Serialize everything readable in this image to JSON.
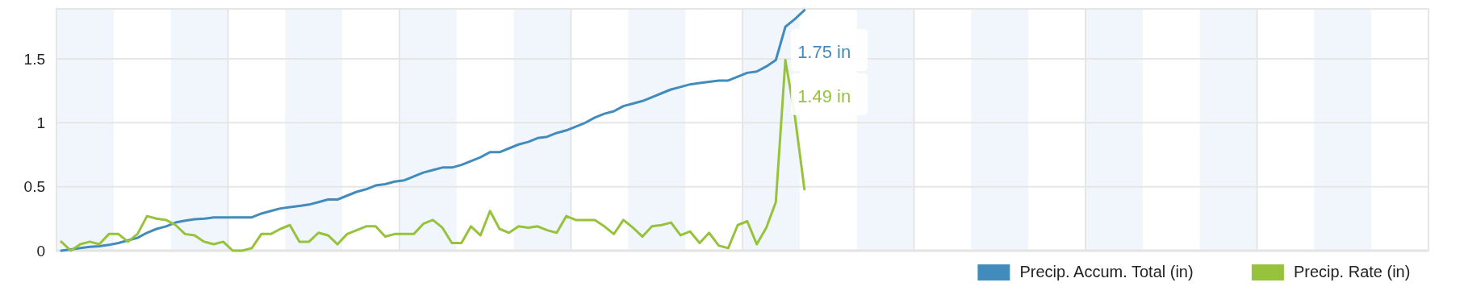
{
  "chart_data": {
    "type": "line",
    "categories": [
      null,
      null,
      null,
      null,
      null,
      null,
      null,
      null,
      null,
      null,
      null,
      null,
      null,
      null,
      null,
      null,
      null,
      null,
      null,
      null,
      null,
      null,
      null,
      null,
      null,
      null,
      null,
      null,
      null,
      null,
      null,
      null,
      null,
      null,
      null,
      null,
      null,
      null,
      null,
      null,
      null,
      null,
      null,
      null,
      null,
      null,
      null,
      null,
      null,
      null,
      null,
      null,
      null,
      null,
      null,
      null,
      null,
      null,
      null,
      null,
      null,
      null,
      null,
      null,
      null,
      null,
      null,
      null,
      null,
      null,
      null,
      null,
      null,
      null,
      null,
      null,
      null,
      null,
      null,
      null,
      null,
      null,
      null,
      null,
      null,
      null,
      null,
      null,
      null,
      null,
      null,
      null,
      null,
      null,
      null,
      null,
      null,
      null,
      null,
      null,
      null,
      null,
      null,
      null,
      null,
      null,
      null,
      null,
      null,
      null,
      null,
      null,
      null,
      null,
      null,
      null,
      null,
      null,
      null,
      null,
      null,
      null,
      null,
      null,
      null,
      null,
      null,
      null,
      null,
      null,
      null,
      null,
      null,
      null,
      null,
      null,
      null,
      null,
      null,
      null,
      null,
      null,
      null,
      null
    ],
    "ylim": [
      0,
      1.89
    ],
    "yticks": [
      0,
      0.5,
      1,
      1.5
    ],
    "tick_labels": "y",
    "grid": "y",
    "legend": "bottom right",
    "line_style": "solid",
    "annotations": [
      "1.75 in",
      "1.49 in"
    ],
    "series": [
      {
        "name": "Precip. Accum. Total (in)",
        "color": "#428bbd",
        "values": [
          0,
          0.01,
          0.02,
          0.03,
          0.035,
          0.045,
          0.06,
          0.08,
          0.1,
          0.14,
          0.17,
          0.19,
          0.22,
          0.235,
          0.245,
          0.25,
          0.26,
          0.26,
          0.26,
          0.26,
          0.26,
          0.29,
          0.31,
          0.33,
          0.34,
          0.35,
          0.36,
          0.38,
          0.4,
          0.4,
          0.43,
          0.46,
          0.48,
          0.51,
          0.52,
          0.54,
          0.55,
          0.58,
          0.61,
          0.63,
          0.65,
          0.65,
          0.67,
          0.7,
          0.73,
          0.77,
          0.77,
          0.8,
          0.83,
          0.85,
          0.88,
          0.89,
          0.92,
          0.94,
          0.97,
          1.0,
          1.04,
          1.07,
          1.09,
          1.13,
          1.15,
          1.17,
          1.2,
          1.23,
          1.26,
          1.28,
          1.3,
          1.31,
          1.32,
          1.33,
          1.33,
          1.36,
          1.39,
          1.4,
          1.44,
          1.49,
          1.75,
          1.81,
          1.88,
          null,
          null,
          null,
          null,
          null,
          null,
          null,
          null,
          null,
          null,
          null,
          null,
          null,
          null,
          null,
          null,
          null,
          null,
          null,
          null,
          null,
          null,
          null,
          null,
          null,
          null,
          null,
          null,
          null,
          null,
          null,
          null,
          null,
          null,
          null,
          null,
          null,
          null,
          null,
          null,
          null,
          null,
          null,
          null,
          null,
          null,
          null,
          null,
          null,
          null,
          null,
          null,
          null,
          null,
          null,
          null,
          null,
          null,
          null,
          null,
          null,
          null,
          null,
          null,
          null
        ]
      },
      {
        "name": "Precip. Rate (in)",
        "color": "#97c23c",
        "values": [
          0.07,
          0,
          0.05,
          0.07,
          0.05,
          0.13,
          0.13,
          0.07,
          0.13,
          0.27,
          0.25,
          0.24,
          0.2,
          0.13,
          0.12,
          0.07,
          0.05,
          0.07,
          0,
          0,
          0.02,
          0.13,
          0.13,
          0.17,
          0.2,
          0.07,
          0.07,
          0.14,
          0.12,
          0.05,
          0.13,
          0.16,
          0.19,
          0.19,
          0.11,
          0.13,
          0.13,
          0.13,
          0.21,
          0.24,
          0.18,
          0.06,
          0.06,
          0.19,
          0.12,
          0.31,
          0.17,
          0.14,
          0.19,
          0.18,
          0.19,
          0.16,
          0.14,
          0.27,
          0.24,
          0.24,
          0.24,
          0.19,
          0.13,
          0.24,
          0.18,
          0.11,
          0.19,
          0.2,
          0.22,
          0.12,
          0.15,
          0.06,
          0.14,
          0.04,
          0.02,
          0.2,
          0.23,
          0.05,
          0.18,
          0.38,
          1.49,
          1.05,
          0.48,
          null,
          null,
          null,
          null,
          null,
          null,
          null,
          null,
          null,
          null,
          null,
          null,
          null,
          null,
          null,
          null,
          null,
          null,
          null,
          null,
          null,
          null,
          null,
          null,
          null,
          null,
          null,
          null,
          null,
          null,
          null,
          null,
          null,
          null,
          null,
          null,
          null,
          null,
          null,
          null,
          null,
          null,
          null,
          null,
          null,
          null,
          null,
          null,
          null,
          null,
          null,
          null,
          null,
          null,
          null,
          null,
          null,
          null,
          null,
          null,
          null,
          null,
          null,
          null,
          null
        ]
      }
    ]
  }
}
